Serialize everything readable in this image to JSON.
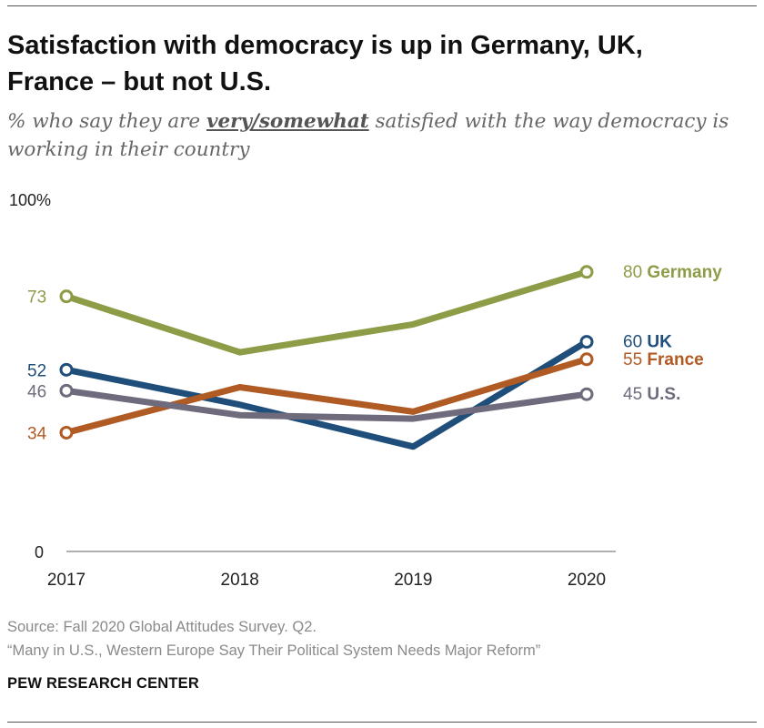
{
  "header": {
    "title_line1": "Satisfaction with democracy is up in Germany, UK,",
    "title_line2": "France – but not U.S.",
    "subtitle_pre": "% who say they are ",
    "subtitle_emph": "very/somewhat",
    "subtitle_line1_post": " satisfied with the way democracy is",
    "subtitle_line2": "working in their country"
  },
  "chart_data": {
    "type": "line",
    "categories": [
      "2017",
      "2018",
      "2019",
      "2020"
    ],
    "x": [
      2017,
      2018,
      2019,
      2020
    ],
    "ylim": [
      0,
      100
    ],
    "ytick_top": "100%",
    "ytick_bottom": "0",
    "series": [
      {
        "name": "Germany",
        "color": "#8c9c47",
        "values": [
          73,
          57,
          65,
          80
        ],
        "start_label": "73",
        "end_label": "80"
      },
      {
        "name": "UK",
        "color": "#1f4e7a",
        "values": [
          52,
          42,
          30,
          60
        ],
        "start_label": "52",
        "end_label": "60"
      },
      {
        "name": "France",
        "color": "#b05a24",
        "values": [
          34,
          47,
          40,
          55
        ],
        "start_label": "34",
        "end_label": "55"
      },
      {
        "name": "U.S.",
        "color": "#6f6a7c",
        "values": [
          46,
          39,
          38,
          45
        ],
        "start_label": "46",
        "end_label": "45"
      }
    ]
  },
  "footer": {
    "source_line1": "Source: Fall 2020 Global Attitudes Survey. Q2.",
    "source_line2": "“Many in U.S., Western Europe Say Their Political System Needs Major Reform”",
    "brand": "PEW RESEARCH CENTER"
  }
}
